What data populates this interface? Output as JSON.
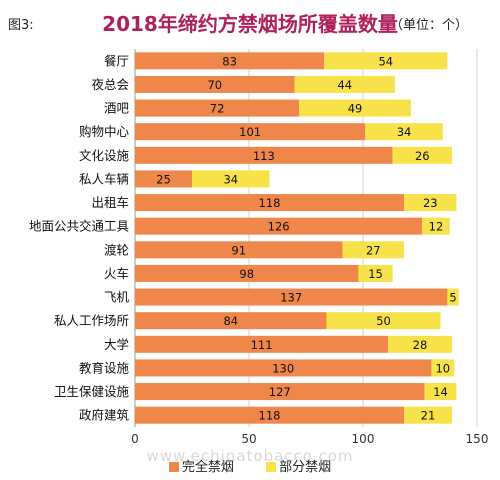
{
  "figure_label": "图3:",
  "unit_label": "（单位：个）",
  "watermark": "www.echinatobacco.com",
  "colors": {
    "complete": "#f0874a",
    "partial": "#f7e24a",
    "title": "#b0205a"
  },
  "chart_data": {
    "type": "bar",
    "orientation": "horizontal",
    "stacked": true,
    "title": "2018年缔约方禁烟场所覆盖数量",
    "categories": [
      "餐厅",
      "夜总会",
      "酒吧",
      "购物中心",
      "文化设施",
      "私人车辆",
      "出租车",
      "地面公共交通工具",
      "渡轮",
      "火车",
      "飞机",
      "私人工作场所",
      "大学",
      "教育设施",
      "卫生保健设施",
      "政府建筑"
    ],
    "series": [
      {
        "name": "完全禁烟",
        "values": [
          83,
          70,
          72,
          101,
          113,
          25,
          118,
          126,
          91,
          98,
          137,
          84,
          111,
          130,
          127,
          118
        ]
      },
      {
        "name": "部分禁烟",
        "values": [
          54,
          44,
          49,
          34,
          26,
          34,
          23,
          12,
          27,
          15,
          5,
          50,
          28,
          10,
          14,
          21
        ]
      }
    ],
    "xlim": [
      0,
      150
    ],
    "xticks": [
      0,
      50,
      100,
      150
    ],
    "grid": "vertical",
    "legend_position": "bottom"
  }
}
